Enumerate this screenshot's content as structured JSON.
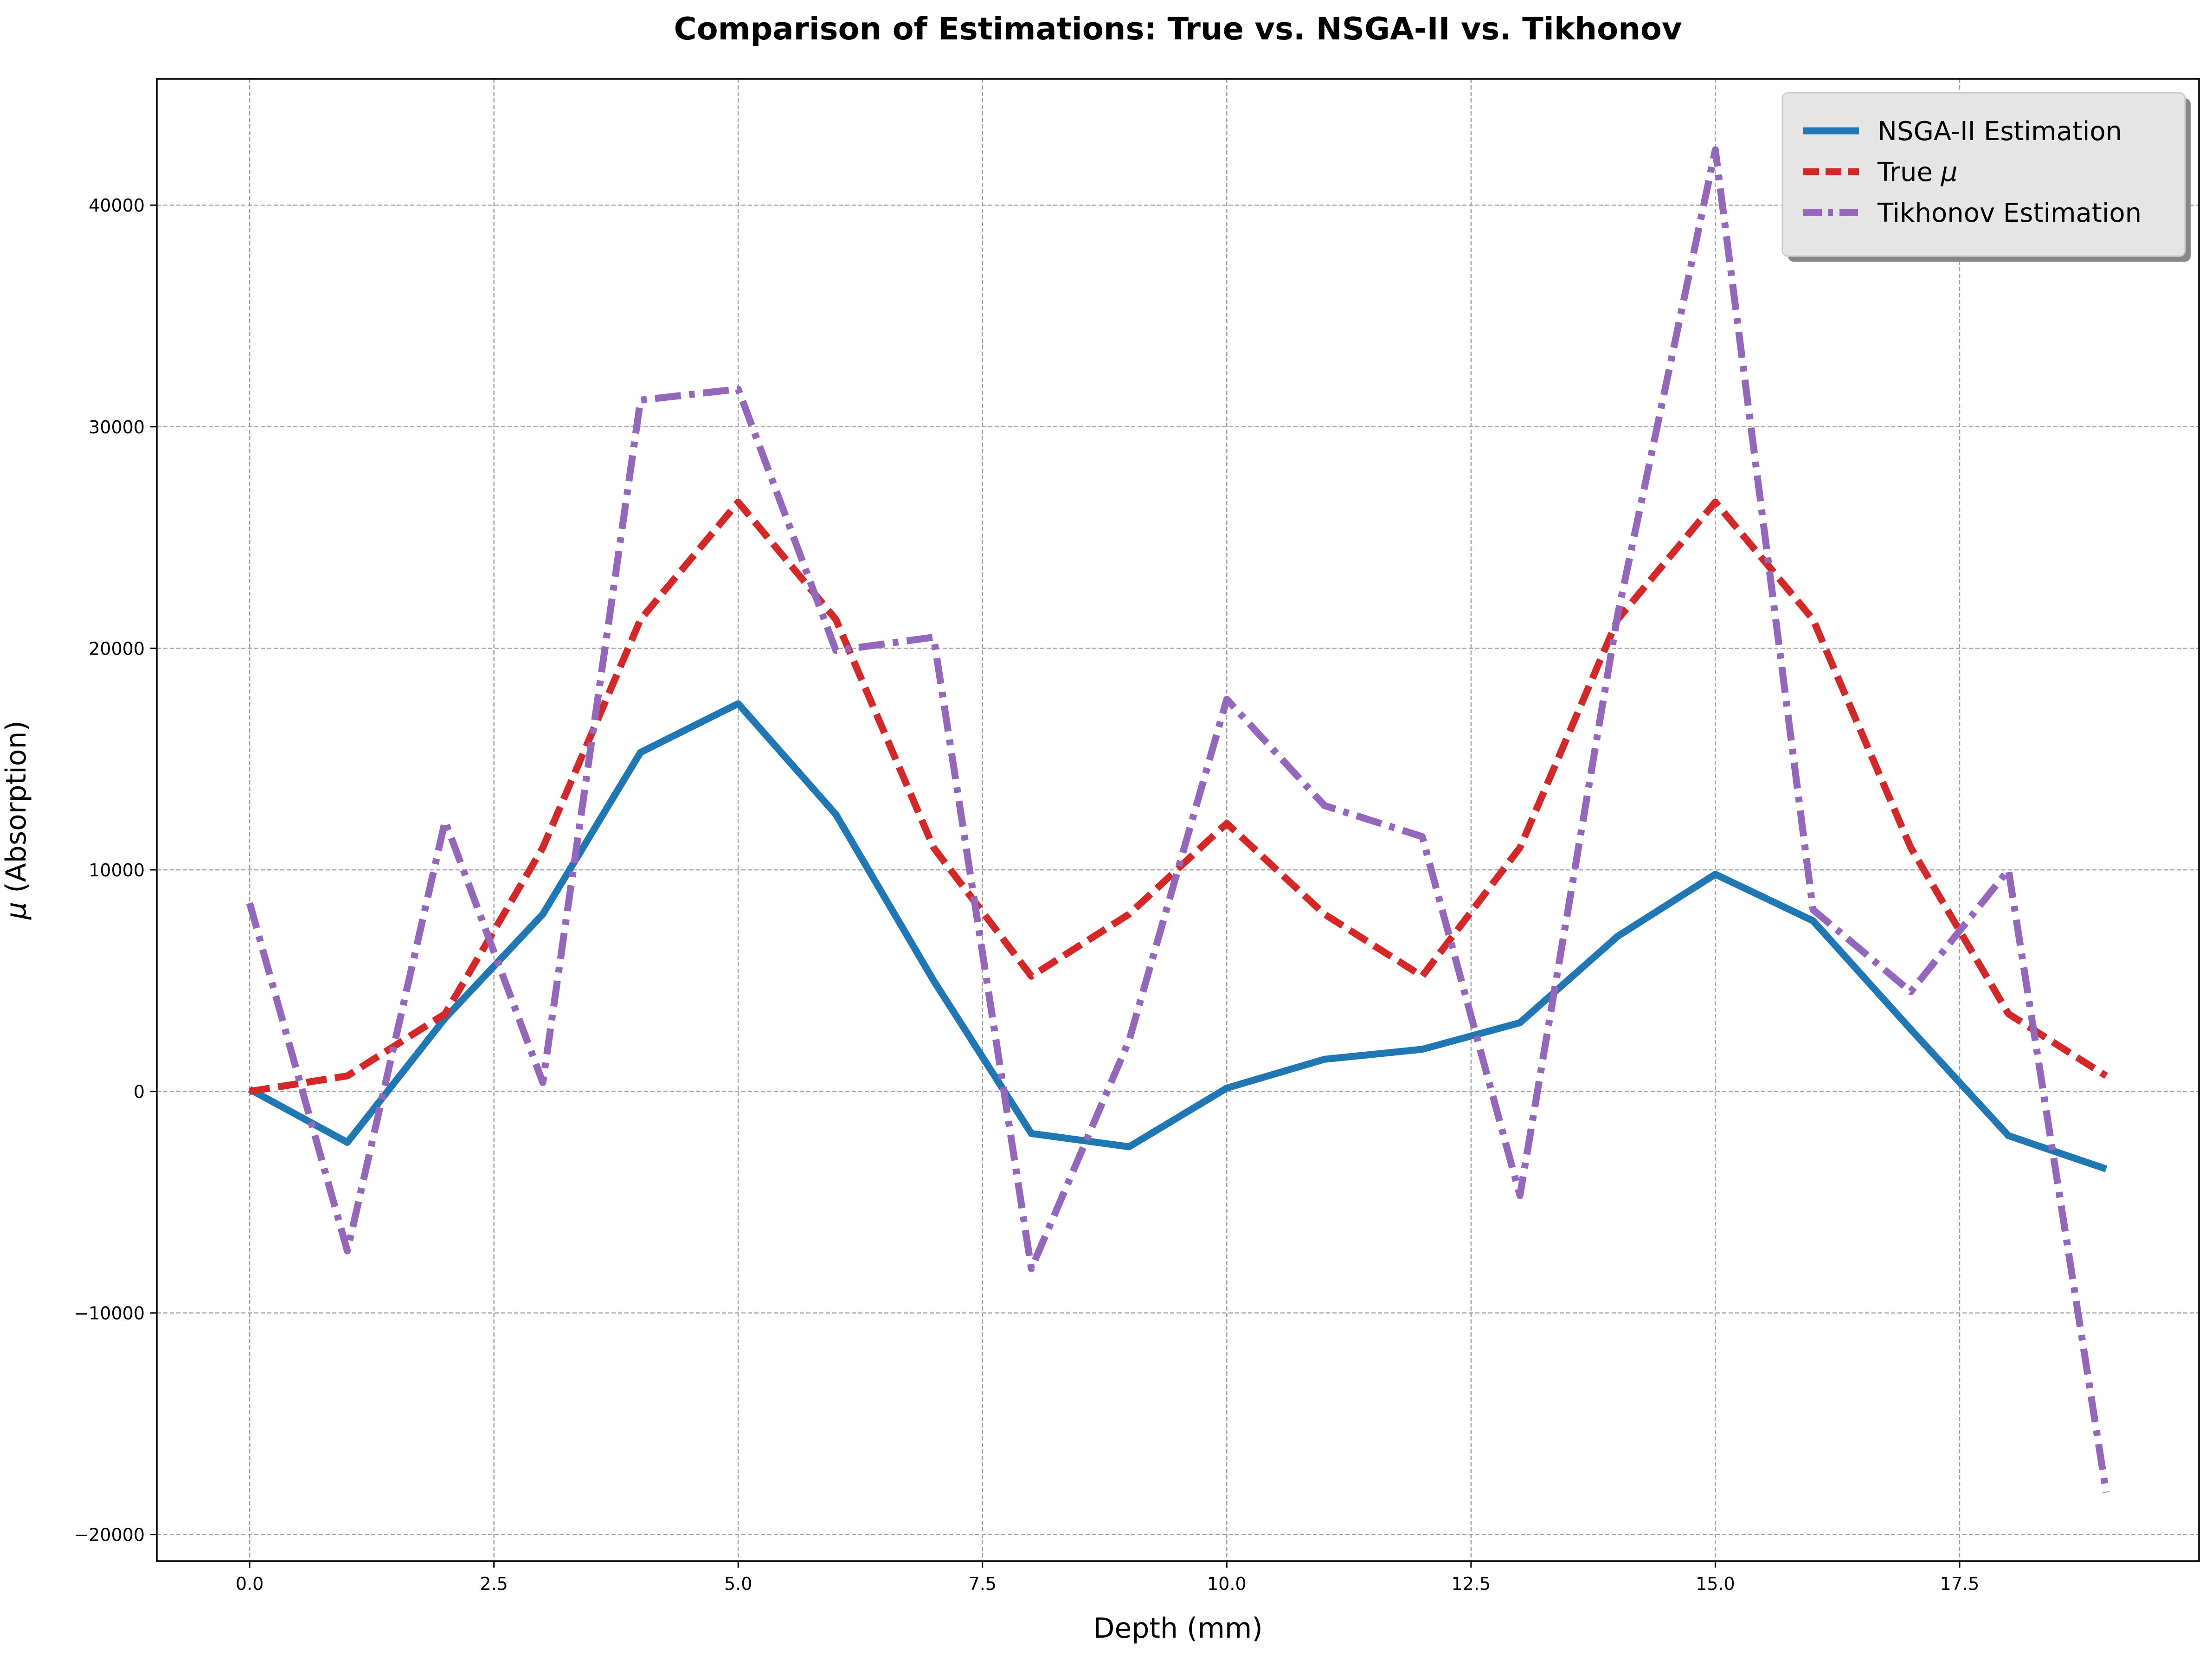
{
  "chart_data": {
    "type": "line",
    "title": "Comparison of Estimations: True vs. NSGA-II vs. Tikhonov",
    "xlabel": "Depth (mm)",
    "ylabel_symbol": "μ",
    "ylabel_rest": " (Absorption)",
    "xlim": [
      -0.95,
      19.95
    ],
    "ylim": [
      -21200,
      45700
    ],
    "xticks": [
      0,
      2.5,
      5,
      7.5,
      10,
      12.5,
      15,
      17.5
    ],
    "xtick_labels": [
      "0.0",
      "2.5",
      "5.0",
      "7.5",
      "10.0",
      "12.5",
      "15.0",
      "17.5"
    ],
    "yticks": [
      -20000,
      -10000,
      0,
      10000,
      20000,
      30000,
      40000
    ],
    "ytick_labels": [
      "−20000",
      "−10000",
      "0",
      "10000",
      "20000",
      "30000",
      "40000"
    ],
    "grid": true,
    "legend_position": "top-right",
    "x": [
      0,
      1,
      2,
      3,
      4,
      5,
      6,
      7,
      8,
      9,
      10,
      11,
      12,
      13,
      14,
      15,
      16,
      17,
      18,
      19
    ],
    "series": [
      {
        "name": "NSGA-II Estimation",
        "legend_symbol": "",
        "legend_rest": "NSGA-II Estimation",
        "color": "#1f77b4",
        "style": "solid",
        "values": [
          100,
          -2300,
          3300,
          8000,
          15300,
          17500,
          12500,
          5000,
          -1900,
          -2500,
          150,
          1450,
          1900,
          3100,
          7000,
          9800,
          7700,
          2800,
          -2000,
          -3500
        ]
      },
      {
        "name": "True μ",
        "legend_symbol": "μ",
        "legend_rest": "True ",
        "color": "#d62728",
        "style": "dashed",
        "values": [
          0,
          700,
          3500,
          11000,
          21300,
          26600,
          21300,
          11000,
          5200,
          8000,
          12100,
          8000,
          5200,
          11000,
          21300,
          26600,
          21300,
          11000,
          3500,
          700
        ]
      },
      {
        "name": "Tikhonov Estimation",
        "legend_symbol": "",
        "legend_rest": "Tikhonov Estimation",
        "color": "#9467bd",
        "style": "dashdot",
        "values": [
          8500,
          -7200,
          12200,
          400,
          31200,
          31700,
          19900,
          20500,
          -8000,
          2300,
          17700,
          12900,
          11500,
          -4700,
          21500,
          42500,
          8200,
          4500,
          10000,
          -18100
        ]
      }
    ]
  }
}
